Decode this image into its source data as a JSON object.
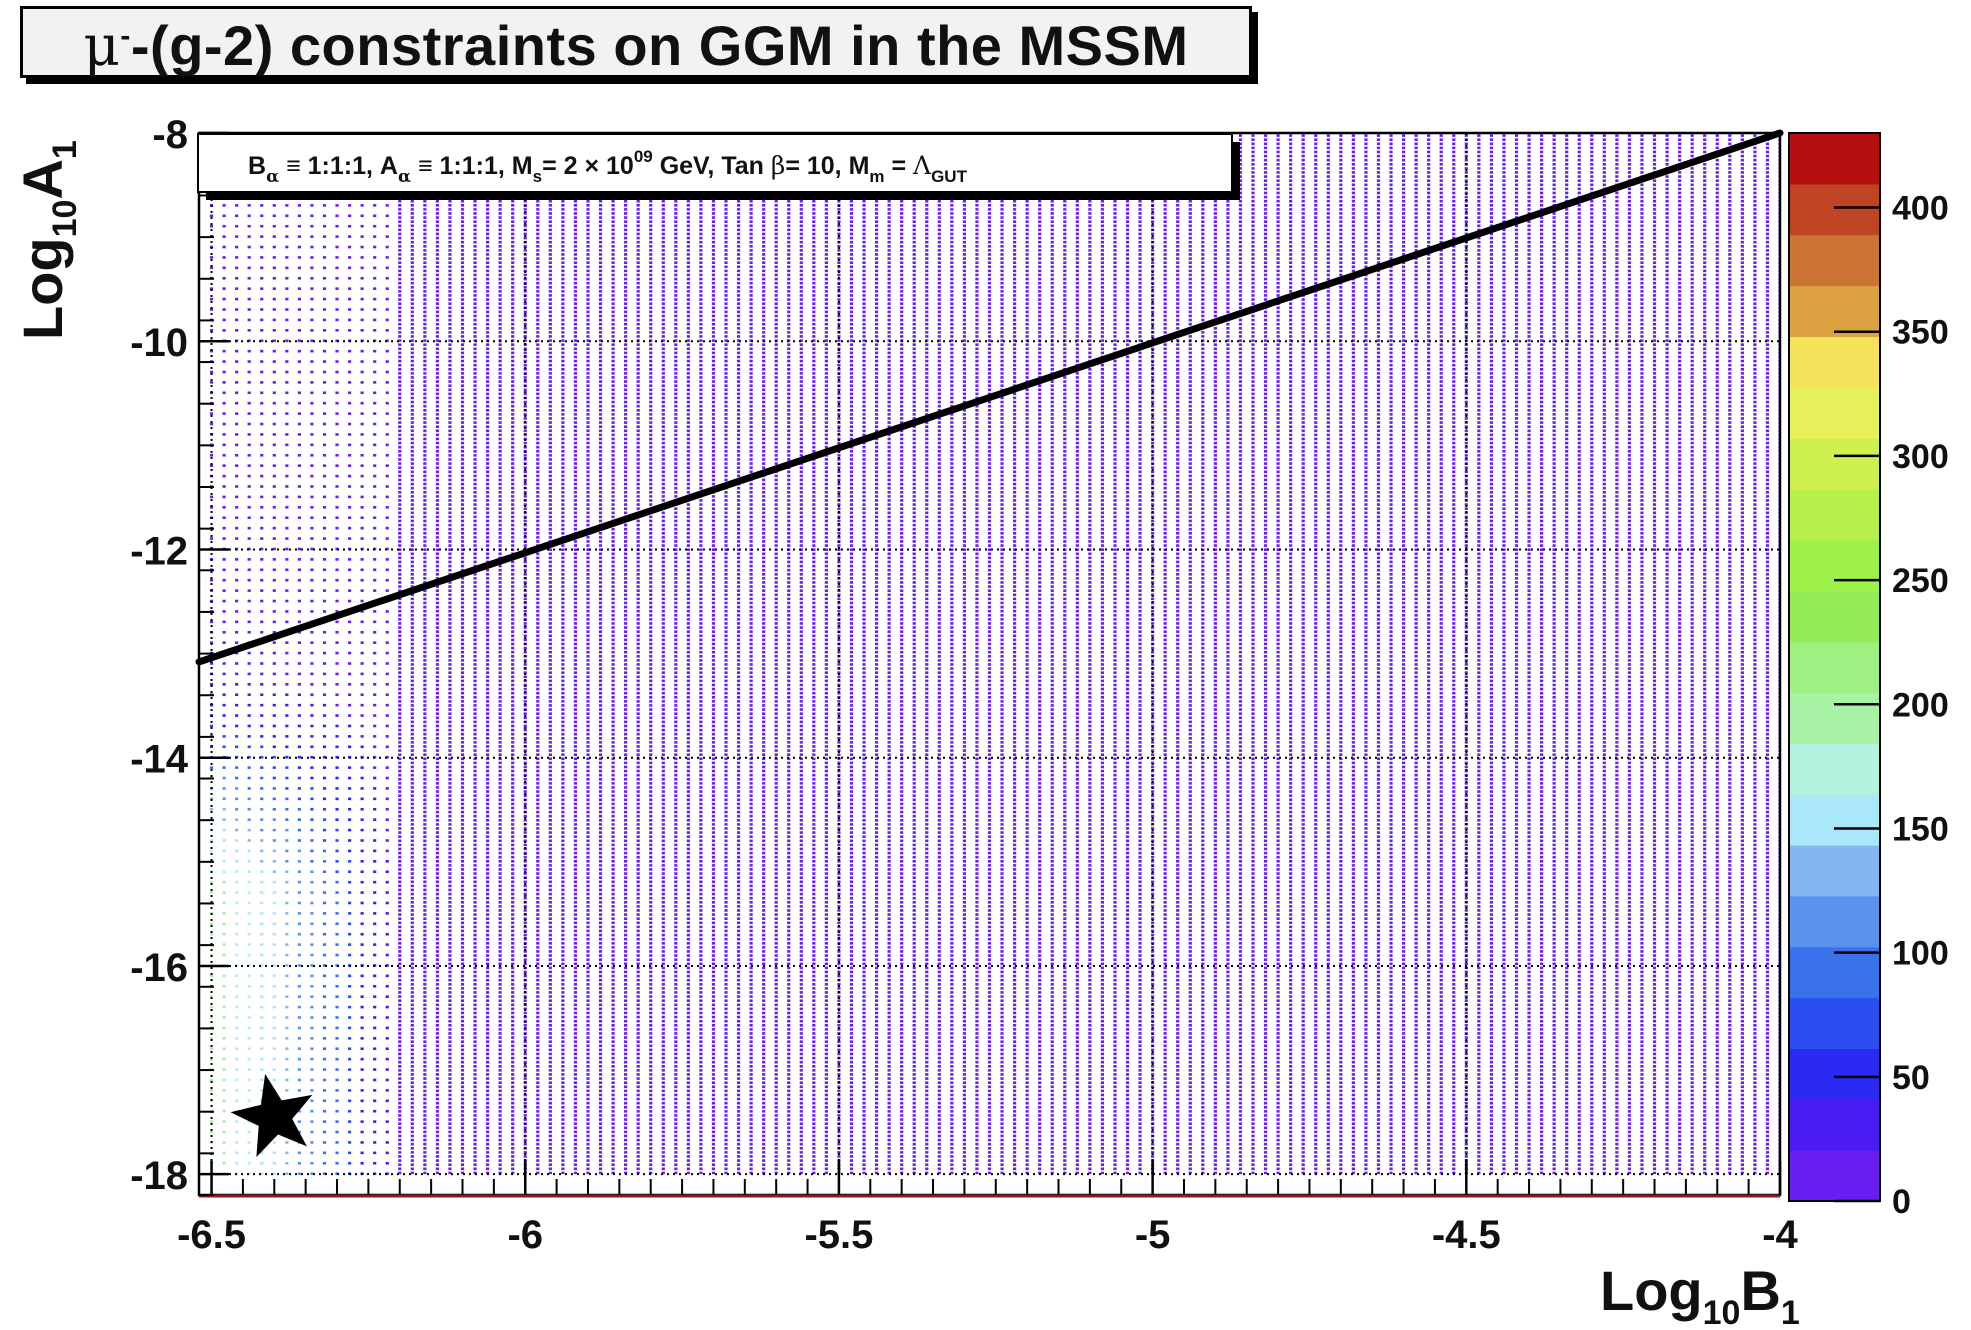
{
  "chart_data": {
    "type": "heatmap",
    "title": {
      "symbol": "μ",
      "superscript": "-",
      "text": "-(g-2) constraints on GGM in the MSSM"
    },
    "annotation": {
      "b_label": "B",
      "b_sub": "α",
      "b_value": " ≡ 1:1:1, ",
      "a_label": "A",
      "a_sub": "α",
      "a_value": " ≡ 1:1:1, ",
      "ms_label": "M",
      "ms_sub": "s",
      "ms_value": "= 2 × 10",
      "ms_exp": "09",
      "ms_unit": " GeV, Tan ",
      "beta": "β",
      "tan_value": "= 10, ",
      "mm_label": "M",
      "mm_sub": "m",
      "mm_value": " = ",
      "lambda": "Λ",
      "lambda_sub": "GUT"
    },
    "xlabel": {
      "main": "Log",
      "sub": "10",
      "var": "B",
      "var_sub": "1"
    },
    "ylabel": {
      "main": "Log",
      "sub": "10",
      "var": "A",
      "var_sub": "1"
    },
    "xlim": [
      -6.52,
      -4.0
    ],
    "ylim": [
      -18.2,
      -8.0
    ],
    "x_ticks": [
      -6.5,
      -6,
      -5.5,
      -5,
      -4.5,
      -4
    ],
    "x_tick_labels": [
      "-6.5",
      "-6",
      "-5.5",
      "-5",
      "-4.5",
      "-4"
    ],
    "y_ticks": [
      -18,
      -16,
      -14,
      -12,
      -10,
      -8
    ],
    "y_tick_labels": [
      "-18",
      "-16",
      "-14",
      "-12",
      "-10",
      "-8"
    ],
    "grid": true,
    "z_ticks": [
      0,
      50,
      100,
      150,
      200,
      250,
      300,
      350,
      400
    ],
    "z_tick_labels": [
      "0",
      "50",
      "100",
      "150",
      "200",
      "250",
      "300",
      "350",
      "400"
    ],
    "zlim": [
      0,
      430
    ],
    "colorbar_colors": [
      "#6a1ef0",
      "#4a1cf2",
      "#2a2af4",
      "#2a4ef0",
      "#3a72ec",
      "#5a92ee",
      "#86b6f2",
      "#a8e8f8",
      "#b2f2de",
      "#a8f2a6",
      "#9ef082",
      "#94ec56",
      "#9ef04a",
      "#b6f04a",
      "#cef04e",
      "#e6f05a",
      "#f6e25a",
      "#dca242",
      "#cc7434",
      "#be4424",
      "#b40e0e"
    ],
    "scan": {
      "b_start": -6.5,
      "b_end": -4.0,
      "b_step": 0.02,
      "a_start": -18.0,
      "a_end": -8.0,
      "a_step": 0.1,
      "background_value": 0,
      "high_region_b_max": -6.2,
      "high_region_a_max": -13.0,
      "high_region_peak_value": 200
    },
    "line": {
      "type": "bound",
      "points": [
        [
          -6.52,
          -13.08
        ],
        [
          -4.0,
          -8.0
        ]
      ]
    },
    "marker": {
      "symbol": "star",
      "x": -6.4,
      "y": -17.45
    }
  }
}
